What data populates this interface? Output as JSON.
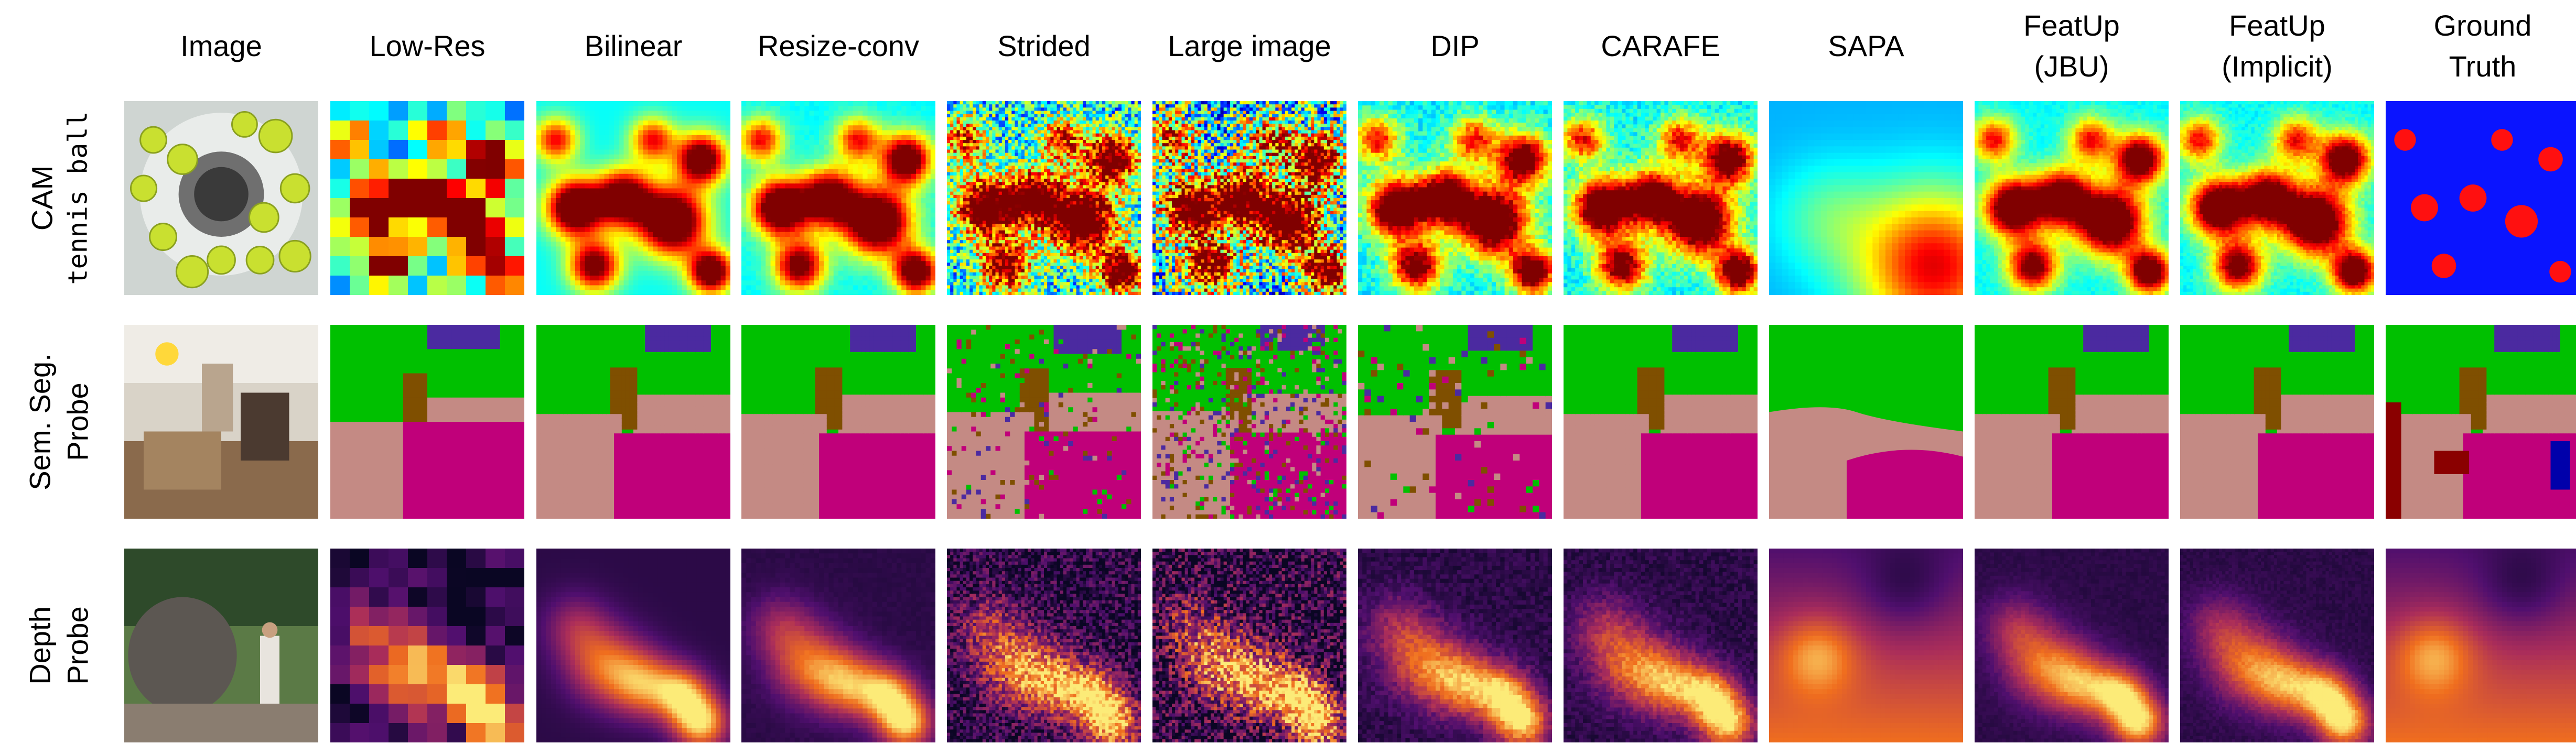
{
  "columns": [
    {
      "id": "image",
      "label": "Image"
    },
    {
      "id": "low-res",
      "label": "Low-Res"
    },
    {
      "id": "bilinear",
      "label": "Bilinear"
    },
    {
      "id": "resize-conv",
      "label": "Resize-conv"
    },
    {
      "id": "strided",
      "label": "Strided"
    },
    {
      "id": "large-image",
      "label": "Large image"
    },
    {
      "id": "dip",
      "label": "DIP"
    },
    {
      "id": "carafe",
      "label": "CARAFE"
    },
    {
      "id": "sapa",
      "label": "SAPA"
    },
    {
      "id": "featup-jbu",
      "label": "FeatUp\n(JBU)"
    },
    {
      "id": "featup-implicit",
      "label": "FeatUp\n(Implicit)"
    },
    {
      "id": "ground-truth",
      "label": "Ground\nTruth"
    }
  ],
  "rows": [
    {
      "id": "cam",
      "label_lines": [
        "CAM"
      ],
      "sublabel": "tennis ball",
      "colormap": "jet"
    },
    {
      "id": "semseg",
      "label_lines": [
        "Sem. Seg.",
        "Probe"
      ],
      "sublabel": "",
      "colormap": "segmentation"
    },
    {
      "id": "depth",
      "label_lines": [
        "Depth",
        "Probe"
      ],
      "sublabel": "",
      "colormap": "inferno"
    }
  ],
  "colors": {
    "seg_green": "#00c000",
    "seg_pink": "#c48a84",
    "seg_magenta": "#c0007a",
    "seg_purple": "#4b2aa0",
    "seg_brown": "#7f4f00",
    "jet_low": "#1a2cff",
    "jet_high": "#ff1a00",
    "inferno_dark": "#120a2a",
    "inferno_bright": "#fce060"
  }
}
